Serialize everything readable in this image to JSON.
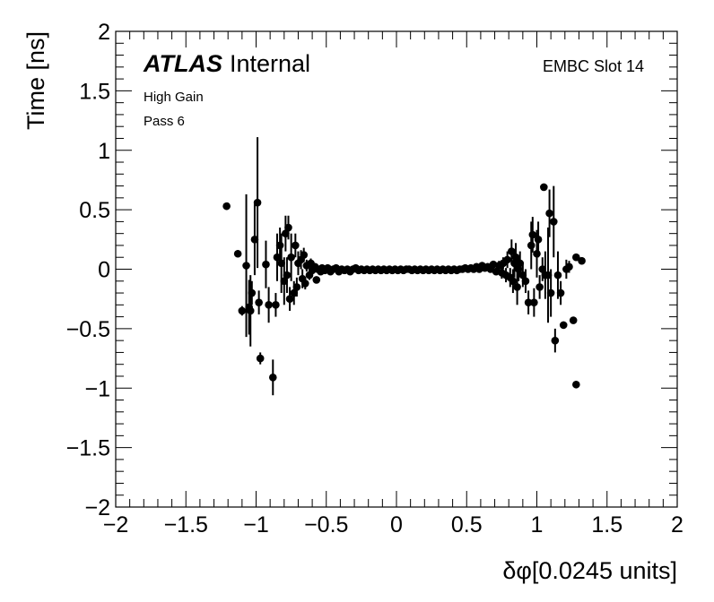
{
  "chart_data": {
    "type": "scatter",
    "title": "",
    "xlabel": "δφ[0.0245 units]",
    "ylabel": "Time [ns]",
    "xlim": [
      -2,
      2
    ],
    "ylim": [
      -2,
      2
    ],
    "grid": false,
    "x_tick_labels": [
      "−2",
      "−1.5",
      "−1",
      "−0.5",
      "0",
      "0.5",
      "1",
      "1.5",
      "2"
    ],
    "y_tick_labels": [
      "−2",
      "−1.5",
      "−1",
      "−0.5",
      "0",
      "0.5",
      "1",
      "1.5",
      "2"
    ],
    "annotations": {
      "experiment": "ATLAS",
      "status": "Internal",
      "line1": "High Gain",
      "line2": "Pass 6",
      "slot": "EMBC Slot 14"
    },
    "series": [
      {
        "points": [
          {
            "x": -1.21,
            "y": 0.53,
            "err": 0.03
          },
          {
            "x": -1.13,
            "y": 0.13,
            "err": 0.03
          },
          {
            "x": -1.1,
            "y": -0.35,
            "err": 0.04
          },
          {
            "x": -1.07,
            "y": 0.03,
            "err": 0.6
          },
          {
            "x": -1.05,
            "y": -0.32,
            "err": 0.23
          },
          {
            "x": -1.04,
            "y": -0.35,
            "err": 0.3
          },
          {
            "x": -1.03,
            "y": -0.2,
            "err": 0.1
          },
          {
            "x": -1.01,
            "y": 0.25,
            "err": 0.3
          },
          {
            "x": -0.99,
            "y": 0.56,
            "err": 0.55
          },
          {
            "x": -0.98,
            "y": -0.28,
            "err": 0.1
          },
          {
            "x": -0.97,
            "y": -0.75,
            "err": 0.05
          },
          {
            "x": -0.93,
            "y": 0.04,
            "err": 0.2
          },
          {
            "x": -0.91,
            "y": -0.3,
            "err": 0.15
          },
          {
            "x": -0.88,
            "y": -0.91,
            "err": 0.15
          },
          {
            "x": -0.86,
            "y": -0.3,
            "err": 0.1
          },
          {
            "x": -0.85,
            "y": 0.1,
            "err": 0.2
          },
          {
            "x": -0.83,
            "y": 0.2,
            "err": 0.15
          },
          {
            "x": -0.82,
            "y": 0.05,
            "err": 0.25
          },
          {
            "x": -0.8,
            "y": -0.1,
            "err": 0.2
          },
          {
            "x": -0.79,
            "y": 0.3,
            "err": 0.15
          },
          {
            "x": -0.78,
            "y": -0.05,
            "err": 0.15
          },
          {
            "x": -0.77,
            "y": 0.35,
            "err": 0.1
          },
          {
            "x": -0.76,
            "y": -0.25,
            "err": 0.1
          },
          {
            "x": -0.75,
            "y": 0.1,
            "err": 0.2
          },
          {
            "x": -0.73,
            "y": -0.2,
            "err": 0.1
          },
          {
            "x": -0.72,
            "y": 0.2,
            "err": 0.1
          },
          {
            "x": -0.71,
            "y": -0.15,
            "err": 0.08
          },
          {
            "x": -0.7,
            "y": 0.05,
            "err": 0.1
          },
          {
            "x": -0.68,
            "y": 0.08,
            "err": 0.08
          },
          {
            "x": -0.67,
            "y": -0.08,
            "err": 0.08
          },
          {
            "x": -0.66,
            "y": 0.12,
            "err": 0.06
          },
          {
            "x": -0.65,
            "y": -0.12,
            "err": 0.05
          },
          {
            "x": -0.64,
            "y": 0.03,
            "err": 0.05
          },
          {
            "x": -0.62,
            "y": -0.05,
            "err": 0.04
          },
          {
            "x": -0.61,
            "y": 0.05,
            "err": 0.04
          },
          {
            "x": -0.6,
            "y": -0.01,
            "err": 0.04
          },
          {
            "x": -0.58,
            "y": 0.02,
            "err": 0.03
          },
          {
            "x": -0.57,
            "y": -0.09,
            "err": 0.03
          },
          {
            "x": -0.56,
            "y": 0.0,
            "err": 0.03
          },
          {
            "x": -0.54,
            "y": -0.02,
            "err": 0.02
          },
          {
            "x": -0.53,
            "y": 0.01,
            "err": 0.02
          },
          {
            "x": -0.51,
            "y": -0.01,
            "err": 0.02
          },
          {
            "x": -0.49,
            "y": 0.01,
            "err": 0.02
          },
          {
            "x": -0.47,
            "y": -0.02,
            "err": 0.02
          },
          {
            "x": -0.45,
            "y": 0.0,
            "err": 0.02
          },
          {
            "x": -0.43,
            "y": 0.01,
            "err": 0.02
          },
          {
            "x": -0.41,
            "y": -0.02,
            "err": 0.02
          },
          {
            "x": -0.39,
            "y": 0.0,
            "err": 0.02
          },
          {
            "x": -0.37,
            "y": -0.01,
            "err": 0.02
          },
          {
            "x": -0.35,
            "y": 0.0,
            "err": 0.02
          },
          {
            "x": -0.33,
            "y": -0.02,
            "err": 0.02
          },
          {
            "x": -0.31,
            "y": 0.0,
            "err": 0.02
          },
          {
            "x": -0.29,
            "y": 0.01,
            "err": 0.02
          },
          {
            "x": -0.27,
            "y": -0.01,
            "err": 0.02
          },
          {
            "x": -0.25,
            "y": 0.0,
            "err": 0.02
          },
          {
            "x": -0.23,
            "y": -0.01,
            "err": 0.02
          },
          {
            "x": -0.21,
            "y": 0.0,
            "err": 0.02
          },
          {
            "x": -0.19,
            "y": -0.01,
            "err": 0.02
          },
          {
            "x": -0.17,
            "y": 0.0,
            "err": 0.02
          },
          {
            "x": -0.15,
            "y": -0.01,
            "err": 0.02
          },
          {
            "x": -0.13,
            "y": 0.0,
            "err": 0.02
          },
          {
            "x": -0.11,
            "y": -0.01,
            "err": 0.02
          },
          {
            "x": -0.09,
            "y": 0.0,
            "err": 0.02
          },
          {
            "x": -0.07,
            "y": -0.01,
            "err": 0.02
          },
          {
            "x": -0.05,
            "y": 0.0,
            "err": 0.02
          },
          {
            "x": -0.03,
            "y": -0.01,
            "err": 0.02
          },
          {
            "x": -0.01,
            "y": 0.0,
            "err": 0.02
          },
          {
            "x": 0.01,
            "y": -0.01,
            "err": 0.02
          },
          {
            "x": 0.03,
            "y": 0.0,
            "err": 0.02
          },
          {
            "x": 0.05,
            "y": -0.01,
            "err": 0.02
          },
          {
            "x": 0.07,
            "y": 0.0,
            "err": 0.02
          },
          {
            "x": 0.09,
            "y": 0.0,
            "err": 0.02
          },
          {
            "x": 0.11,
            "y": -0.01,
            "err": 0.02
          },
          {
            "x": 0.13,
            "y": 0.0,
            "err": 0.02
          },
          {
            "x": 0.15,
            "y": -0.01,
            "err": 0.02
          },
          {
            "x": 0.17,
            "y": 0.0,
            "err": 0.02
          },
          {
            "x": 0.19,
            "y": -0.01,
            "err": 0.02
          },
          {
            "x": 0.21,
            "y": 0.0,
            "err": 0.02
          },
          {
            "x": 0.23,
            "y": -0.01,
            "err": 0.02
          },
          {
            "x": 0.25,
            "y": 0.0,
            "err": 0.02
          },
          {
            "x": 0.27,
            "y": -0.01,
            "err": 0.02
          },
          {
            "x": 0.29,
            "y": 0.0,
            "err": 0.02
          },
          {
            "x": 0.31,
            "y": -0.01,
            "err": 0.02
          },
          {
            "x": 0.33,
            "y": 0.0,
            "err": 0.02
          },
          {
            "x": 0.35,
            "y": -0.01,
            "err": 0.02
          },
          {
            "x": 0.37,
            "y": 0.0,
            "err": 0.02
          },
          {
            "x": 0.39,
            "y": -0.01,
            "err": 0.02
          },
          {
            "x": 0.41,
            "y": 0.0,
            "err": 0.02
          },
          {
            "x": 0.43,
            "y": -0.01,
            "err": 0.02
          },
          {
            "x": 0.45,
            "y": 0.0,
            "err": 0.02
          },
          {
            "x": 0.47,
            "y": 0.0,
            "err": 0.02
          },
          {
            "x": 0.49,
            "y": 0.01,
            "err": 0.02
          },
          {
            "x": 0.51,
            "y": 0.0,
            "err": 0.02
          },
          {
            "x": 0.53,
            "y": 0.01,
            "err": 0.02
          },
          {
            "x": 0.55,
            "y": 0.0,
            "err": 0.02
          },
          {
            "x": 0.57,
            "y": 0.02,
            "err": 0.02
          },
          {
            "x": 0.59,
            "y": 0.0,
            "err": 0.02
          },
          {
            "x": 0.61,
            "y": 0.03,
            "err": 0.02
          },
          {
            "x": 0.63,
            "y": 0.01,
            "err": 0.02
          },
          {
            "x": 0.65,
            "y": 0.02,
            "err": 0.02
          },
          {
            "x": 0.67,
            "y": 0.0,
            "err": 0.03
          },
          {
            "x": 0.69,
            "y": 0.04,
            "err": 0.03
          },
          {
            "x": 0.71,
            "y": -0.02,
            "err": 0.03
          },
          {
            "x": 0.73,
            "y": 0.03,
            "err": 0.04
          },
          {
            "x": 0.75,
            "y": -0.03,
            "err": 0.05
          },
          {
            "x": 0.76,
            "y": 0.05,
            "err": 0.05
          },
          {
            "x": 0.78,
            "y": -0.05,
            "err": 0.06
          },
          {
            "x": 0.79,
            "y": 0.08,
            "err": 0.07
          },
          {
            "x": 0.81,
            "y": -0.07,
            "err": 0.08
          },
          {
            "x": 0.82,
            "y": 0.15,
            "err": 0.1
          },
          {
            "x": 0.83,
            "y": -0.1,
            "err": 0.1
          },
          {
            "x": 0.84,
            "y": 0.05,
            "err": 0.12
          },
          {
            "x": 0.85,
            "y": 0.1,
            "err": 0.12
          },
          {
            "x": 0.86,
            "y": -0.15,
            "err": 0.15
          },
          {
            "x": 0.87,
            "y": 0.0,
            "err": 0.1
          },
          {
            "x": 0.88,
            "y": 0.05,
            "err": 0.1
          },
          {
            "x": 0.9,
            "y": -0.05,
            "err": 0.1
          },
          {
            "x": 0.92,
            "y": -0.1,
            "err": 0.1
          },
          {
            "x": 0.94,
            "y": -0.28,
            "err": 0.1
          },
          {
            "x": 0.96,
            "y": 0.2,
            "err": 0.2
          },
          {
            "x": 0.97,
            "y": 0.29,
            "err": 0.15
          },
          {
            "x": 0.98,
            "y": -0.28,
            "err": 0.12
          },
          {
            "x": 1.0,
            "y": 0.13,
            "err": 0.2
          },
          {
            "x": 1.01,
            "y": 0.25,
            "err": 0.15
          },
          {
            "x": 1.02,
            "y": -0.15,
            "err": 0.1
          },
          {
            "x": 1.04,
            "y": 0.0,
            "err": 0.1
          },
          {
            "x": 1.05,
            "y": 0.69,
            "err": 0.03
          },
          {
            "x": 1.06,
            "y": -0.05,
            "err": 0.2
          },
          {
            "x": 1.08,
            "y": -0.05,
            "err": 0.4
          },
          {
            "x": 1.09,
            "y": 0.47,
            "err": 0.2
          },
          {
            "x": 1.1,
            "y": -0.2,
            "err": 0.2
          },
          {
            "x": 1.12,
            "y": 0.4,
            "err": 0.3
          },
          {
            "x": 1.13,
            "y": -0.6,
            "err": 0.1
          },
          {
            "x": 1.15,
            "y": -0.05,
            "err": 0.2
          },
          {
            "x": 1.17,
            "y": -0.2,
            "err": 0.1
          },
          {
            "x": 1.19,
            "y": -0.47,
            "err": 0.03
          },
          {
            "x": 1.21,
            "y": 0.0,
            "err": 0.08
          },
          {
            "x": 1.23,
            "y": 0.02,
            "err": 0.05
          },
          {
            "x": 1.26,
            "y": -0.43,
            "err": 0.03
          },
          {
            "x": 1.28,
            "y": 0.1,
            "err": 0.03
          },
          {
            "x": 1.28,
            "y": -0.97,
            "err": 0.03
          },
          {
            "x": 1.32,
            "y": 0.07,
            "err": 0.03
          }
        ]
      }
    ]
  }
}
